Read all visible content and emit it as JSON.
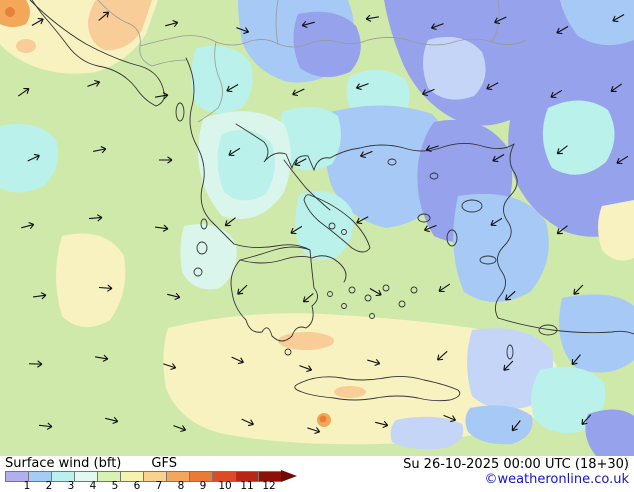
{
  "map": {
    "palette": {
      "green": "#cfe9ab",
      "cream": "#f7f2c0",
      "peach": "#f8cd97",
      "orange": "#f3a759",
      "red_orange": "#e8803d",
      "cyan": "#baf1ea",
      "pale_cyan": "#daf6ec",
      "light_blue": "#a7c9f5",
      "pale_blue": "#c4d5f8",
      "periwinkle": "#97a2ec",
      "coastline": "#333333",
      "border": "#999999"
    },
    "arrow_color": "#111111",
    "arrows": [
      [
        38,
        22,
        -30
      ],
      [
        104,
        16,
        -40
      ],
      [
        172,
        24,
        -15
      ],
      [
        243,
        30,
        20
      ],
      [
        308,
        24,
        165
      ],
      [
        372,
        18,
        170
      ],
      [
        437,
        26,
        160
      ],
      [
        500,
        20,
        155
      ],
      [
        562,
        30,
        150
      ],
      [
        618,
        18,
        150
      ],
      [
        24,
        92,
        -35
      ],
      [
        94,
        84,
        -20
      ],
      [
        162,
        96,
        -10
      ],
      [
        232,
        88,
        150
      ],
      [
        298,
        92,
        155
      ],
      [
        362,
        86,
        160
      ],
      [
        428,
        92,
        158
      ],
      [
        492,
        86,
        152
      ],
      [
        556,
        94,
        148
      ],
      [
        616,
        88,
        145
      ],
      [
        34,
        158,
        -25
      ],
      [
        100,
        150,
        -12
      ],
      [
        166,
        160,
        0
      ],
      [
        234,
        152,
        148
      ],
      [
        300,
        162,
        152
      ],
      [
        366,
        154,
        158
      ],
      [
        432,
        148,
        162
      ],
      [
        498,
        158,
        150
      ],
      [
        562,
        150,
        142
      ],
      [
        622,
        160,
        148
      ],
      [
        28,
        226,
        -15
      ],
      [
        96,
        218,
        -5
      ],
      [
        162,
        228,
        8
      ],
      [
        230,
        222,
        142
      ],
      [
        296,
        230,
        148
      ],
      [
        362,
        220,
        152
      ],
      [
        430,
        228,
        158
      ],
      [
        496,
        222,
        148
      ],
      [
        562,
        230,
        142
      ],
      [
        40,
        296,
        -8
      ],
      [
        106,
        288,
        4
      ],
      [
        174,
        296,
        14
      ],
      [
        242,
        290,
        136
      ],
      [
        308,
        298,
        140
      ],
      [
        376,
        292,
        30
      ],
      [
        444,
        288,
        146
      ],
      [
        510,
        296,
        138
      ],
      [
        578,
        290,
        134
      ],
      [
        36,
        364,
        2
      ],
      [
        102,
        358,
        10
      ],
      [
        170,
        366,
        18
      ],
      [
        238,
        360,
        24
      ],
      [
        306,
        368,
        20
      ],
      [
        374,
        362,
        16
      ],
      [
        442,
        356,
        138
      ],
      [
        508,
        366,
        134
      ],
      [
        576,
        360,
        130
      ],
      [
        46,
        426,
        6
      ],
      [
        112,
        420,
        14
      ],
      [
        180,
        428,
        20
      ],
      [
        248,
        422,
        24
      ],
      [
        314,
        430,
        18
      ],
      [
        382,
        424,
        14
      ],
      [
        450,
        418,
        22
      ],
      [
        516,
        426,
        128
      ],
      [
        586,
        420,
        132
      ]
    ]
  },
  "legend": {
    "title": "Surface wind (bft)",
    "model": "GFS",
    "colors": [
      "#b1aff0",
      "#a3cdf4",
      "#b9f1ef",
      "#e2f9f2",
      "#d9f1b2",
      "#f6f3b0",
      "#f7d38e",
      "#f3a75b",
      "#ec7a36",
      "#dd4a24",
      "#b72616",
      "#8c1106"
    ],
    "arrow_color": "#700b03",
    "ticks": [
      "1",
      "2",
      "3",
      "4",
      "5",
      "6",
      "7",
      "8",
      "9",
      "10",
      "11",
      "12"
    ]
  },
  "footer": {
    "datetime": "Su 26-10-2025 00:00 UTC (18+30)",
    "copyright": "©weatheronline.co.uk",
    "link_color": "#1414cc"
  }
}
